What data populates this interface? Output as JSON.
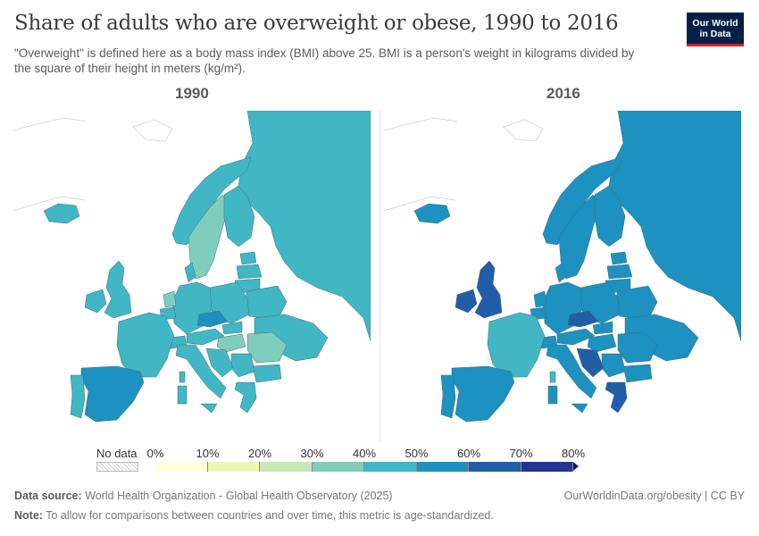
{
  "title": "Share of adults who are overweight or obese, 1990 to 2016",
  "subtitle": "\"Overweight\" is defined here as a body mass index (BMI) above 25. BMI is a person's weight in kilograms divided by the square of their height in meters (kg/m²).",
  "logo": {
    "line1": "Our World",
    "line2": "in Data",
    "background": "#002147",
    "accent": "#ce261e"
  },
  "panels": [
    {
      "label": "1990"
    },
    {
      "label": "2016"
    }
  ],
  "legend": {
    "no_data_label": "No data",
    "ticks": [
      "0%",
      "10%",
      "20%",
      "30%",
      "40%",
      "50%",
      "60%",
      "70%",
      "80%"
    ],
    "colors": [
      "#ffffd9",
      "#edf8b1",
      "#c7e9b4",
      "#7fcdbb",
      "#41b6c4",
      "#1d91c0",
      "#225ea8",
      "#253494",
      "#081d58"
    ]
  },
  "chart_data": {
    "type": "choropleth",
    "title": "Share of adults who are overweight or obese, 1990 to 2016",
    "unit": "%",
    "bins": [
      0,
      10,
      20,
      30,
      40,
      50,
      60,
      70,
      80
    ],
    "maps": [
      {
        "year": "1990",
        "regions": {
          "russia": 45,
          "norway": 44,
          "sweden": 38,
          "finland": 45,
          "iceland": 45,
          "ireland": 42,
          "united-kingdom": 45,
          "france": 42,
          "spain": 52,
          "portugal": 46,
          "italy": 45,
          "germany": 46,
          "poland": 46,
          "netherlands": 38,
          "belgium": 41,
          "denmark": 43,
          "czechia": 56,
          "slovakia": 45,
          "austria": 41,
          "switzerland": 42,
          "hungary": 38,
          "romania": 38,
          "bulgaria": 44,
          "greece": 46,
          "serbia": 45,
          "croatia": 45,
          "ukraine": 46,
          "belarus": 46,
          "lithuania": 46,
          "latvia": 45,
          "estonia": 44,
          "sardinia": 45,
          "sicily": 45,
          "corsica": 44
        }
      },
      {
        "year": "2016",
        "regions": {
          "russia": 56,
          "norway": 54,
          "sweden": 52,
          "finland": 55,
          "iceland": 57,
          "ireland": 62,
          "united-kingdom": 64,
          "france": 45,
          "spain": 58,
          "portugal": 56,
          "italy": 54,
          "germany": 58,
          "poland": 57,
          "netherlands": 55,
          "belgium": 56,
          "denmark": 54,
          "czechia": 60,
          "slovakia": 58,
          "austria": 53,
          "switzerland": 50,
          "hungary": 56,
          "romania": 56,
          "bulgaria": 58,
          "greece": 63,
          "serbia": 59,
          "croatia": 66,
          "ukraine": 57,
          "belarus": 57,
          "lithuania": 58,
          "latvia": 57,
          "estonia": 54,
          "sardinia": 54,
          "sicily": 54,
          "corsica": 45
        }
      }
    ]
  },
  "footer": {
    "source_label": "Data source:",
    "source_text": "World Health Organization - Global Health Observatory (2025)",
    "note_label": "Note:",
    "note_text": "To allow for comparisons between countries and over time, this metric is age-standardized.",
    "link_text": "OurWorldinData.org/obesity | CC BY"
  }
}
